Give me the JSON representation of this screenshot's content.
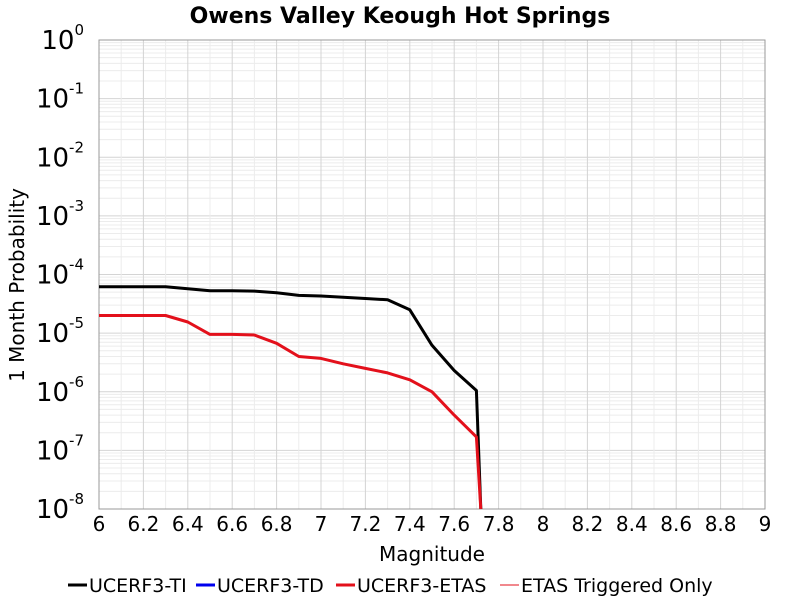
{
  "chart_data": {
    "type": "line",
    "title": "Owens Valley Keough Hot Springs",
    "xlabel": "Magnitude",
    "ylabel": "1 Month Probability",
    "xlim": [
      6,
      9
    ],
    "ylim": [
      1e-08,
      1
    ],
    "y_scale": "log",
    "grid": true,
    "legend_position": "bottom",
    "x_ticks": [
      "6",
      "6.2",
      "6.4",
      "6.6",
      "6.8",
      "7",
      "7.2",
      "7.4",
      "7.6",
      "7.8",
      "8",
      "8.2",
      "8.4",
      "8.6",
      "8.8",
      "9"
    ],
    "y_ticks": [
      {
        "base": "10",
        "exp": "0"
      },
      {
        "base": "10",
        "exp": "-1"
      },
      {
        "base": "10",
        "exp": "-2"
      },
      {
        "base": "10",
        "exp": "-3"
      },
      {
        "base": "10",
        "exp": "-4"
      },
      {
        "base": "10",
        "exp": "-5"
      },
      {
        "base": "10",
        "exp": "-6"
      },
      {
        "base": "10",
        "exp": "-7"
      },
      {
        "base": "10",
        "exp": "-8"
      }
    ],
    "series": [
      {
        "name": "UCERF3-TI",
        "color": "#000000",
        "width": 3,
        "x": [
          6.0,
          6.1,
          6.2,
          6.3,
          6.4,
          6.5,
          6.6,
          6.7,
          6.8,
          6.9,
          7.0,
          7.1,
          7.2,
          7.3,
          7.4,
          7.5,
          7.6,
          7.7,
          7.72
        ],
        "y": [
          6.2e-05,
          6.2e-05,
          6.2e-05,
          6.2e-05,
          5.7e-05,
          5.3e-05,
          5.3e-05,
          5.2e-05,
          4.9e-05,
          4.4e-05,
          4.3e-05,
          4.1e-05,
          3.9e-05,
          3.7e-05,
          2.5e-05,
          6.2e-06,
          2.3e-06,
          1.05e-06,
          1e-08
        ]
      },
      {
        "name": "UCERF3-TD",
        "color": "#0000ee",
        "width": 3,
        "x": [],
        "y": []
      },
      {
        "name": "UCERF3-ETAS",
        "color": "#e3101b",
        "width": 3,
        "x": [
          6.0,
          6.1,
          6.2,
          6.3,
          6.4,
          6.5,
          6.6,
          6.7,
          6.8,
          6.9,
          7.0,
          7.1,
          7.2,
          7.3,
          7.4,
          7.5,
          7.6,
          7.7,
          7.72
        ],
        "y": [
          2e-05,
          2e-05,
          2e-05,
          2e-05,
          1.55e-05,
          9.5e-06,
          9.5e-06,
          9.3e-06,
          6.7e-06,
          4e-06,
          3.7e-06,
          3e-06,
          2.5e-06,
          2.1e-06,
          1.6e-06,
          1e-06,
          4e-07,
          1.7e-07,
          1e-08
        ]
      },
      {
        "name": "ETAS Triggered Only",
        "color": "#e3101b",
        "width": 1,
        "x": [],
        "y": []
      }
    ]
  }
}
